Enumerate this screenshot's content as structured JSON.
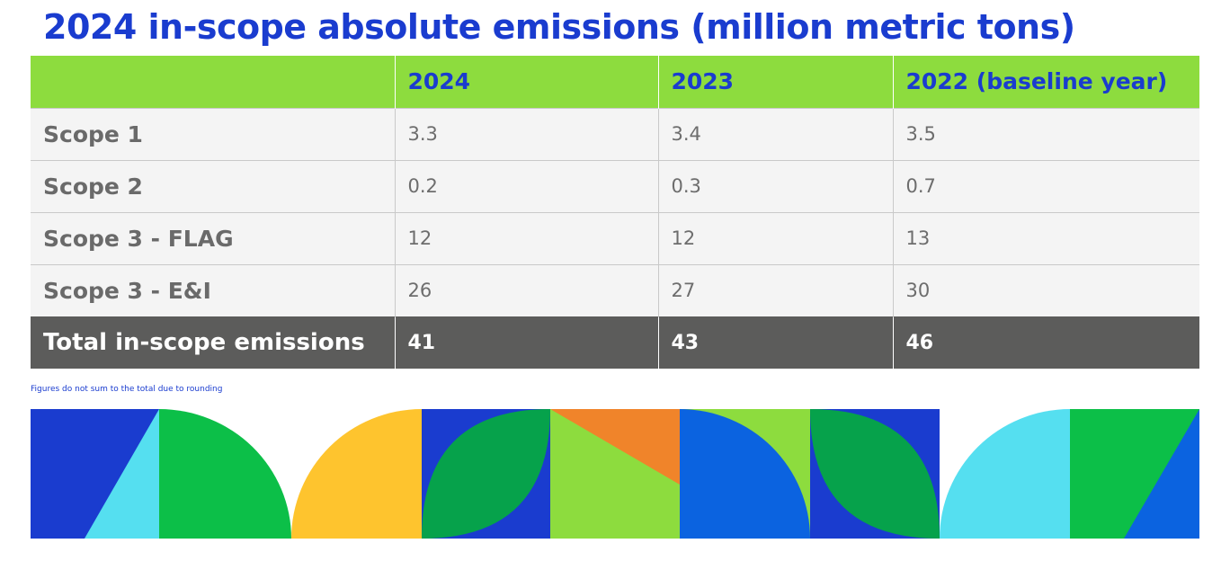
{
  "title": "2024 in-scope absolute emissions (million metric tons)",
  "table": {
    "headers": [
      "",
      "2024",
      "2023",
      "2022 (baseline year)"
    ],
    "rows": [
      {
        "label": "Scope 1",
        "values": [
          "3.3",
          "3.4",
          "3.5"
        ]
      },
      {
        "label": "Scope 2",
        "values": [
          "0.2",
          "0.3",
          "0.7"
        ]
      },
      {
        "label": "Scope 3 - FLAG",
        "values": [
          "12",
          "12",
          "13"
        ]
      },
      {
        "label": "Scope 3 - E&I",
        "values": [
          "26",
          "27",
          "30"
        ]
      }
    ],
    "total": {
      "label": "Total in-scope emissions",
      "values": [
        "41",
        "43",
        "46"
      ]
    }
  },
  "footnote": "Figures do not sum to the total due to rounding",
  "colors": {
    "brand_blue": "#1a3ccf",
    "header_green": "#8ddc3e",
    "total_gray": "#5c5c5b"
  }
}
